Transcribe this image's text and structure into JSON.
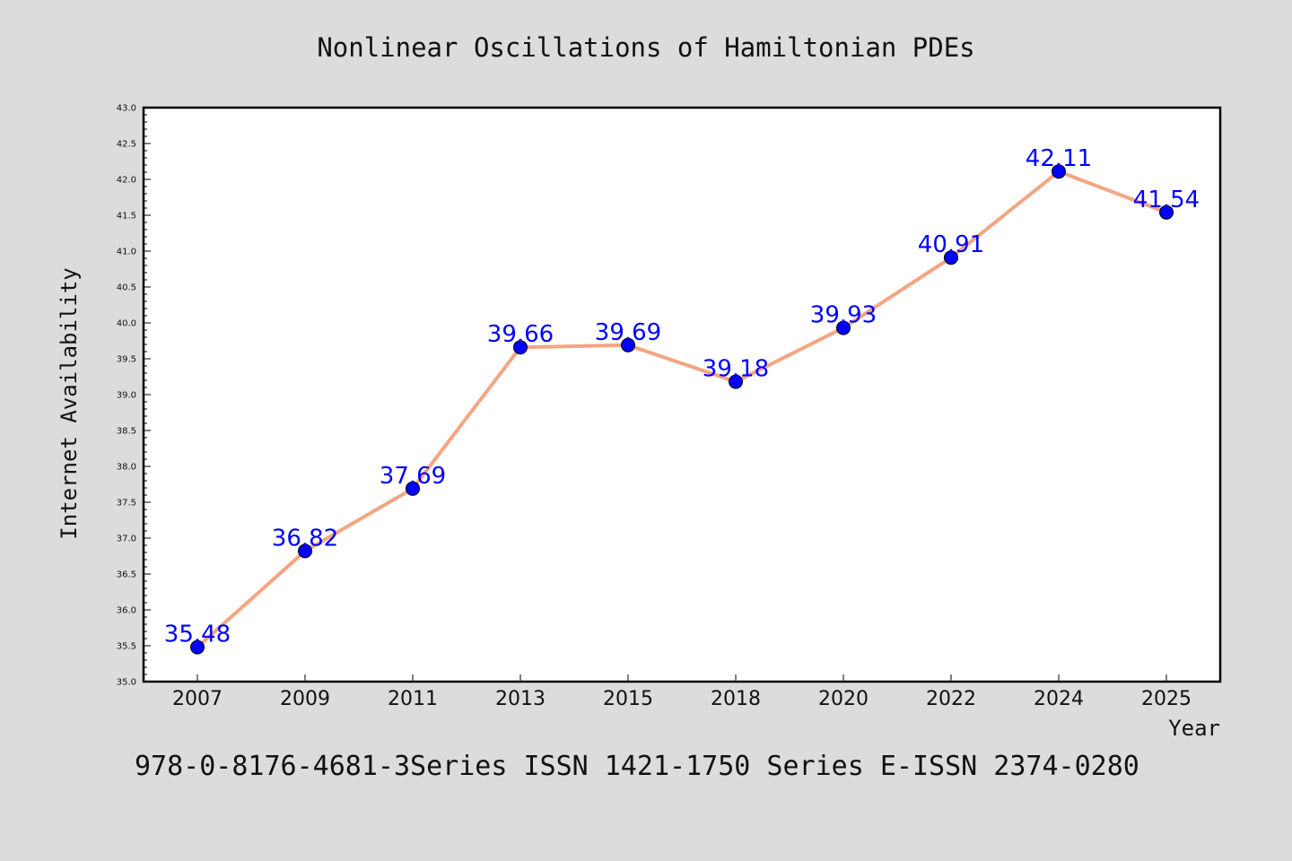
{
  "chart_data": {
    "type": "line",
    "title": "Nonlinear Oscillations of Hamiltonian PDEs",
    "xlabel": "Year",
    "ylabel": "Internet Availability",
    "categories": [
      "2007",
      "2009",
      "2011",
      "2013",
      "2015",
      "2018",
      "2020",
      "2022",
      "2024",
      "2025"
    ],
    "series": [
      {
        "values": [
          35.48,
          36.82,
          37.69,
          39.66,
          39.69,
          39.18,
          39.93,
          40.91,
          42.11,
          41.54
        ],
        "line_color": "#f4a582",
        "marker_color": "#0000ff"
      }
    ],
    "data_labels": [
      "35.48",
      "36.82",
      "37.69",
      "39.66",
      "39.69",
      "39.18",
      "39.93",
      "40.91",
      "42.11",
      "41.54"
    ],
    "data_label_color": "#0000ff",
    "ylim": [
      35.0,
      43.0
    ],
    "yticks": [
      "35.0",
      "35.5",
      "36.0",
      "36.5",
      "37.0",
      "37.5",
      "38.0",
      "38.5",
      "39.0",
      "39.5",
      "40.0",
      "40.5",
      "41.0",
      "41.5",
      "42.0",
      "42.5",
      "43.0"
    ],
    "grid": false,
    "legend": "none",
    "background_color": "#dcdcdc",
    "plot_background_color": "#ffffff"
  },
  "footer": "978-0-8176-4681-3Series ISSN 1421-1750 Series E-ISSN 2374-0280"
}
